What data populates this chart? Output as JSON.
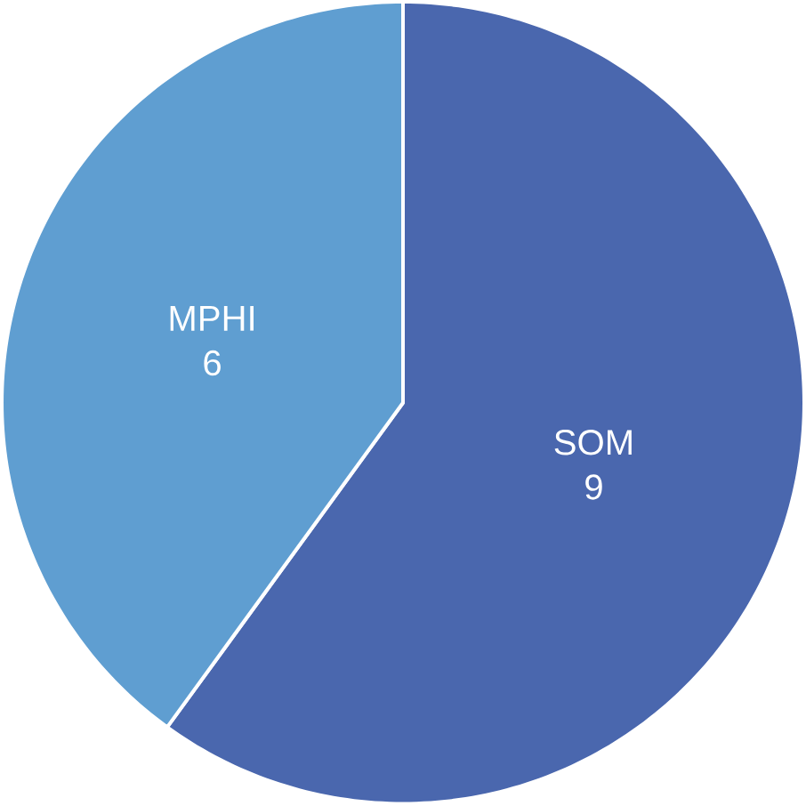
{
  "chart_data": {
    "type": "pie",
    "categories": [
      "SOM",
      "MPHI"
    ],
    "values": [
      9,
      6
    ],
    "colors": [
      "#4a67ae",
      "#5f9ed1"
    ],
    "data_labels": true
  }
}
